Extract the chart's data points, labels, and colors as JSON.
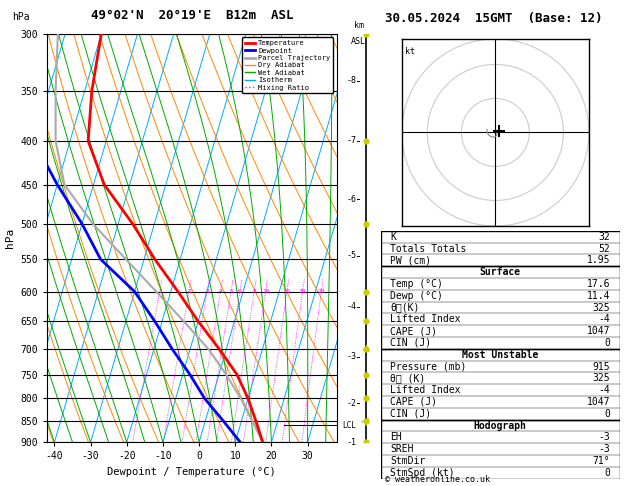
{
  "title_left": "49°02'N  20°19'E  B12m  ASL",
  "title_right": "30.05.2024  15GMT  (Base: 12)",
  "xlabel": "Dewpoint / Temperature (°C)",
  "ylabel_left": "hPa",
  "xlim": [
    -42,
    38
  ],
  "pressure_levels": [
    300,
    350,
    400,
    450,
    500,
    550,
    600,
    650,
    700,
    750,
    800,
    850,
    900
  ],
  "xticks": [
    -40,
    -30,
    -20,
    -10,
    0,
    10,
    20,
    30
  ],
  "temp_color": "#ff0000",
  "dewp_color": "#0000ff",
  "parcel_color": "#aaaaaa",
  "dry_adiabat_color": "#ff8800",
  "wet_adiabat_color": "#00aa00",
  "isotherm_color": "#00aaff",
  "mixing_color": "#ff00ff",
  "wind_barb_color": "#cccc00",
  "background_color": "#ffffff",
  "sounding_temp": [
    17.6,
    14.0,
    10.0,
    5.0,
    -2.0,
    -10.0,
    -18.0,
    -27.0,
    -36.0,
    -47.0,
    -55.0,
    -58.0,
    -60.0
  ],
  "sounding_dewp": [
    11.4,
    5.0,
    -2.0,
    -8.0,
    -15.0,
    -22.0,
    -30.0,
    -42.0,
    -50.0,
    -60.0,
    -70.0,
    -75.0,
    -78.0
  ],
  "sounding_pres": [
    900,
    850,
    800,
    750,
    700,
    650,
    600,
    550,
    500,
    450,
    400,
    350,
    300
  ],
  "parcel_temp": [
    17.6,
    13.0,
    8.0,
    2.0,
    -5.0,
    -14.0,
    -24.0,
    -35.0,
    -47.0,
    -58.0,
    -64.0,
    -68.0,
    -72.0
  ],
  "lcl_pressure": 860,
  "stats": {
    "K": 32,
    "Totals_Totals": 52,
    "PW_cm": 1.95,
    "Surface_Temp": 17.6,
    "Surface_Dewp": 11.4,
    "Surface_theta_e": 325,
    "Surface_LI": -4,
    "Surface_CAPE": 1047,
    "Surface_CIN": 0,
    "MU_Pressure": 915,
    "MU_theta_e": 325,
    "MU_LI": -4,
    "MU_CAPE": 1047,
    "MU_CIN": 0,
    "EH": -3,
    "SREH": -3,
    "StmDir": 71,
    "StmSpd": 0
  },
  "legend_items": [
    {
      "label": "Temperature",
      "color": "#ff0000",
      "lw": 2,
      "ls": "-"
    },
    {
      "label": "Dewpoint",
      "color": "#0000ff",
      "lw": 2,
      "ls": "-"
    },
    {
      "label": "Parcel Trajectory",
      "color": "#aaaaaa",
      "lw": 2,
      "ls": "-"
    },
    {
      "label": "Dry Adiabat",
      "color": "#ff8800",
      "lw": 1,
      "ls": "-"
    },
    {
      "label": "Wet Adiabat",
      "color": "#00aa00",
      "lw": 1,
      "ls": "-"
    },
    {
      "label": "Isotherm",
      "color": "#00aaff",
      "lw": 1,
      "ls": "-"
    },
    {
      "label": "Mixing Ratio",
      "color": "#ff00ff",
      "lw": 1,
      "ls": ":"
    }
  ],
  "mixing_ratios": [
    1,
    2,
    3,
    4,
    5,
    6,
    8,
    10,
    15,
    20,
    28
  ],
  "km_ticks": [
    1,
    2,
    3,
    4,
    5,
    6,
    7,
    8
  ],
  "km_pressures": [
    900,
    810,
    715,
    625,
    545,
    468,
    400,
    340
  ],
  "skew": 30.0,
  "font_family": "monospace"
}
